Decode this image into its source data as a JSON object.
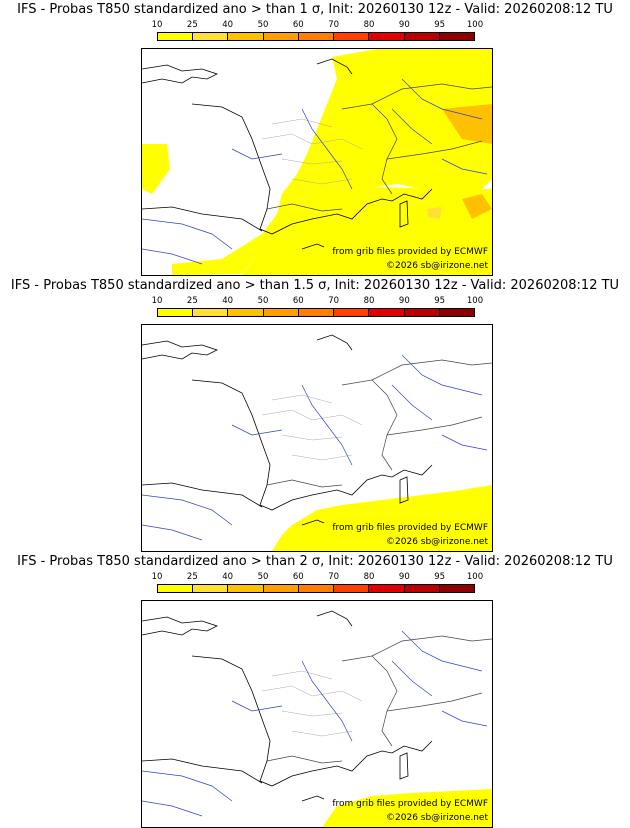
{
  "colorbar": {
    "ticks": [
      "10",
      "25",
      "40",
      "50",
      "60",
      "70",
      "80",
      "90",
      "95",
      "100"
    ],
    "colors": [
      "#ffff00",
      "#ffe033",
      "#ffc000",
      "#ffa000",
      "#ff8000",
      "#ff4000",
      "#e00000",
      "#b80000",
      "#8c0000"
    ]
  },
  "panels": [
    {
      "title": "IFS - Probas T850  standardized ano > than 1 σ, Init: 20260130 12z - Valid: 20260208:12 TU",
      "credit": "from grib files provided by ECMWF",
      "copyright": "©2026 sb@irizone.net"
    },
    {
      "title": "IFS - Probas T850  standardized ano > than 1.5 σ, Init: 20260130 12z - Valid: 20260208:12 TU",
      "credit": "from grib files provided by ECMWF",
      "copyright": "©2026 sb@irizone.net"
    },
    {
      "title": "IFS - Probas T850  standardized ano > than 2 σ, Init: 20260130 12z - Valid: 20260208:12 TU",
      "credit": "from grib files provided by ECMWF",
      "copyright": "©2026 sb@irizone.net"
    }
  ]
}
